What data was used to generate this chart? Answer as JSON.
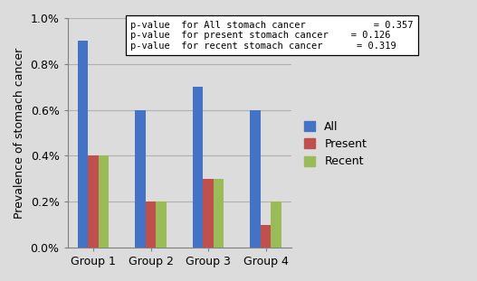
{
  "categories": [
    "Group 1",
    "Group 2",
    "Group 3",
    "Group 4"
  ],
  "series": {
    "All": [
      0.009,
      0.006,
      0.007,
      0.006
    ],
    "Present": [
      0.004,
      0.002,
      0.003,
      0.001
    ],
    "Recent": [
      0.004,
      0.002,
      0.003,
      0.002
    ]
  },
  "colors": {
    "All": "#4472C4",
    "Present": "#C0504D",
    "Recent": "#9BBB59"
  },
  "ylabel": "Prevalence of stomach cancer",
  "ylim": [
    0,
    0.01
  ],
  "yticks": [
    0.0,
    0.002,
    0.004,
    0.006,
    0.008,
    0.01
  ],
  "ytick_labels": [
    "0.0%",
    "0.2%",
    "0.4%",
    "0.6%",
    "0.8%",
    "1.0%"
  ],
  "annotation_lines": [
    "p-value  for All stomach cancer            = 0.357",
    "p-value  for present stomach cancer    = 0.126",
    "p-value  for recent stomach cancer      = 0.319"
  ],
  "legend_labels": [
    "All",
    "Present",
    "Recent"
  ],
  "bar_width": 0.18,
  "background_color": "#dcdcdc",
  "plot_bg_color": "#dcdcdc",
  "grid_color": "#b0b0b0",
  "figsize": [
    5.27,
    3.11
  ],
  "dpi": 100
}
